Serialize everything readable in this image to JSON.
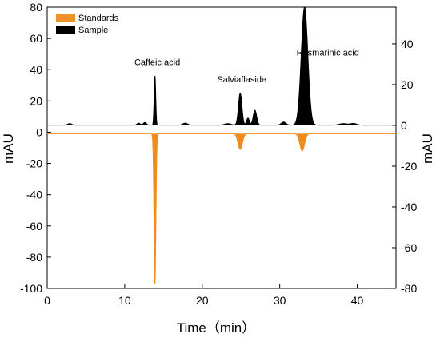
{
  "chart_data": {
    "type": "line",
    "xlabel": "Time（min）",
    "ylabel_left": "mAU",
    "ylabel_right": "mAU",
    "xlim": [
      0,
      45
    ],
    "ylim_left": [
      -100,
      80
    ],
    "ylim_right": [
      -80,
      58
    ],
    "x_ticks": [
      "0",
      "10",
      "20",
      "30",
      "40"
    ],
    "x_tick_values": [
      0,
      10,
      20,
      30,
      40
    ],
    "y_left_ticks": [
      "80",
      "60",
      "40",
      "20",
      "0",
      "-20",
      "-40",
      "-60",
      "-80",
      "-100"
    ],
    "y_left_tick_values": [
      80,
      60,
      40,
      20,
      0,
      -20,
      -40,
      -60,
      -80,
      -100
    ],
    "y_right_ticks": [
      "40",
      "20",
      "0",
      "-20",
      "-40",
      "-60",
      "-80"
    ],
    "y_right_tick_values": [
      40,
      20,
      0,
      -20,
      -40,
      -60,
      -80
    ],
    "legend": {
      "placement": "top-left",
      "items": [
        {
          "label": "Standards",
          "color": "#f08c1e"
        },
        {
          "label": "Sample",
          "color": "#000000"
        }
      ]
    },
    "annotations": [
      {
        "text": "Caffeic acid",
        "x": 14.2,
        "y": 43
      },
      {
        "text": "Salviaflaside",
        "x": 25.1,
        "y": 32
      },
      {
        "text": "Rosmarinic acid",
        "x": 36.2,
        "y": 49
      }
    ],
    "series": [
      {
        "name": "Standards",
        "axis": "left",
        "color": "#f08c1e",
        "baseline": -1.0,
        "peaks": [
          {
            "x": 13.9,
            "y": -97,
            "width": 0.12
          },
          {
            "x": 24.9,
            "y": -11,
            "width": 0.28
          },
          {
            "x": 32.9,
            "y": -12,
            "width": 0.3
          }
        ]
      },
      {
        "name": "Sample",
        "axis": "left",
        "color": "#000000",
        "baseline": 4.5,
        "peaks": [
          {
            "x": 2.9,
            "y": 5.5,
            "width": 0.25
          },
          {
            "x": 11.8,
            "y": 5.8,
            "width": 0.2
          },
          {
            "x": 12.6,
            "y": 6.2,
            "width": 0.2
          },
          {
            "x": 13.9,
            "y": 36,
            "width": 0.1
          },
          {
            "x": 17.8,
            "y": 5.8,
            "width": 0.3
          },
          {
            "x": 23.3,
            "y": 5.5,
            "width": 0.4
          },
          {
            "x": 24.9,
            "y": 25,
            "width": 0.22
          },
          {
            "x": 25.9,
            "y": 9,
            "width": 0.18
          },
          {
            "x": 26.8,
            "y": 14,
            "width": 0.22
          },
          {
            "x": 30.5,
            "y": 6.5,
            "width": 0.3
          },
          {
            "x": 33.2,
            "y": 80,
            "width": 0.42
          },
          {
            "x": 38.2,
            "y": 5.5,
            "width": 0.5
          },
          {
            "x": 39.5,
            "y": 5.6,
            "width": 0.4
          }
        ]
      }
    ],
    "grid": false
  }
}
